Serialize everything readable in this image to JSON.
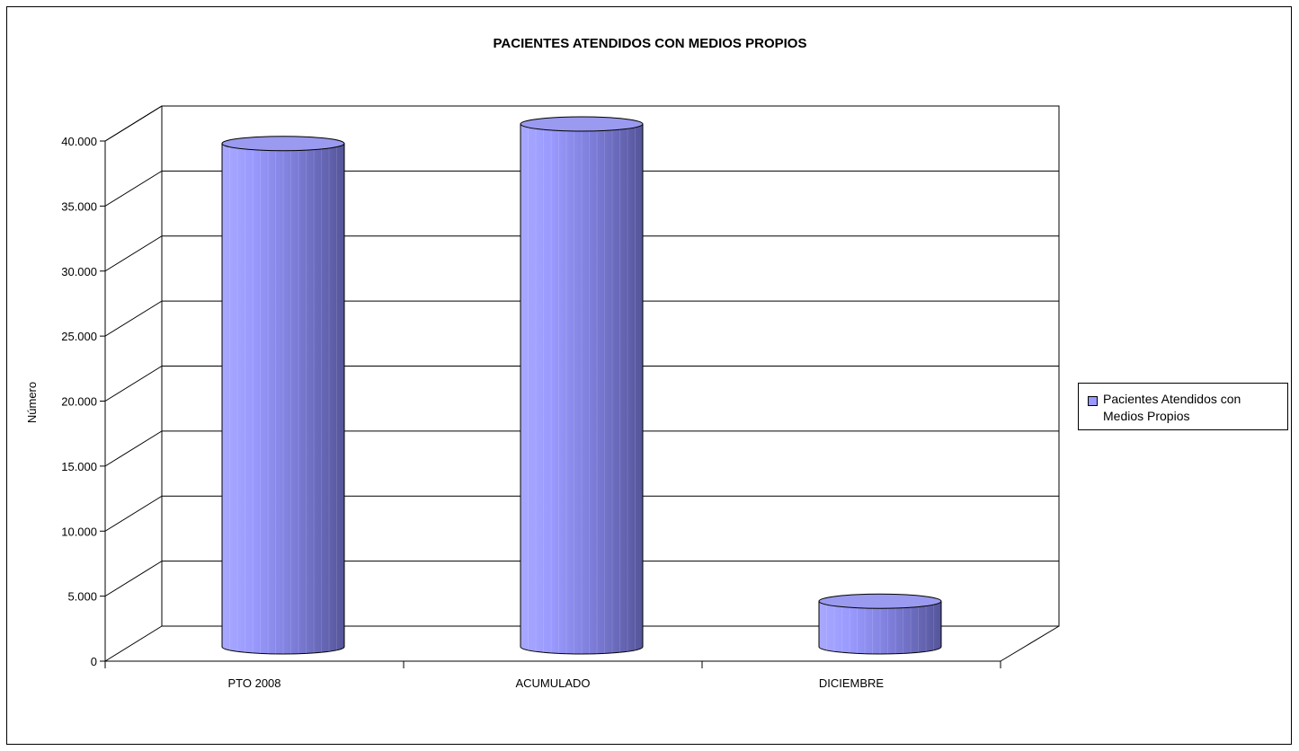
{
  "chart_data": {
    "type": "bar",
    "style": "3d-cylinder",
    "title": "PACIENTES ATENDIDOS CON MEDIOS PROPIOS",
    "xlabel": "",
    "ylabel": "Número",
    "categories": [
      "PTO 2008",
      "ACUMULADO",
      "DICIEMBRE"
    ],
    "series": [
      {
        "name": "Pacientes Atendidos con Medios Propios",
        "values": [
          38500,
          40000,
          3300
        ]
      }
    ],
    "ylim": [
      0,
      40000
    ],
    "yticks": [
      0,
      5000,
      10000,
      15000,
      20000,
      25000,
      30000,
      35000,
      40000
    ],
    "ytick_labels": [
      "0",
      "5.000",
      "10.000",
      "15.000",
      "20.000",
      "25.000",
      "30.000",
      "35.000",
      "40.000"
    ],
    "grid": true,
    "legend_position": "right",
    "colors": {
      "bar": "#9999ff",
      "bar_dark": "#5a5aa0",
      "bar_light": "#b8b8ff",
      "grid": "#000000"
    }
  }
}
